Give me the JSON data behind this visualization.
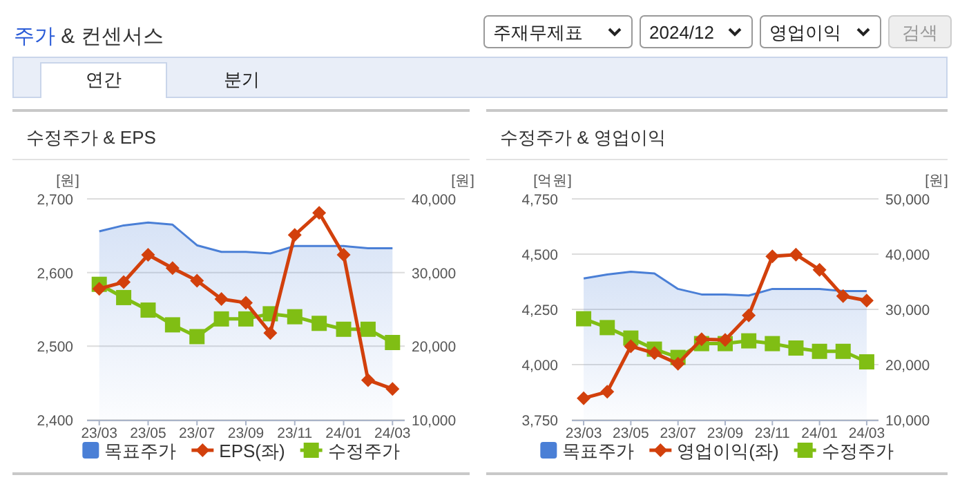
{
  "chart_data": [
    {
      "type": "other",
      "title": "주가 & 컨센서스",
      "annotations": [
        "주재무제표",
        "2024/12",
        "영업이익",
        "검색",
        "연간",
        "분기"
      ]
    },
    {
      "type": "line",
      "title": "수정주가 & EPS",
      "ylabel": "[원]",
      "y2label": "[원]",
      "categories": [
        "23/03",
        null,
        "23/05",
        null,
        "23/07",
        null,
        "23/09",
        null,
        "23/11",
        null,
        "24/01",
        null,
        "24/03"
      ],
      "ylim": [
        2400,
        2700
      ],
      "yticks": [
        {
          "value": 2400,
          "label": "2,400"
        },
        {
          "value": 2500,
          "label": "2,500"
        },
        {
          "value": 2600,
          "label": "2,600"
        },
        {
          "value": 2700,
          "label": "2,700"
        }
      ],
      "y2lim": [
        10000,
        40000
      ],
      "y2ticks": [
        {
          "value": 10000,
          "label": "10,000"
        },
        {
          "value": 20000,
          "label": "20,000"
        },
        {
          "value": 30000,
          "label": "30,000"
        },
        {
          "value": 40000,
          "label": "40,000"
        }
      ],
      "grid": "y",
      "legend": "bottom",
      "series": [
        {
          "name": "목표주가",
          "type": "area",
          "axis": "y2",
          "color": "#4a7fd6",
          "values": [
            35600,
            36400,
            36800,
            36500,
            33700,
            32800,
            32800,
            32600,
            33600,
            33600,
            33600,
            33300,
            33300
          ]
        },
        {
          "name": "EPS(좌)",
          "type": "line",
          "axis": "y",
          "color": "#d2400c",
          "marker": "diamond",
          "values": [
            2578,
            2587,
            2624,
            2606,
            2589,
            2564,
            2559,
            2518,
            2651,
            2681,
            2624,
            2454,
            2442
          ]
        },
        {
          "name": "수정주가",
          "type": "line",
          "axis": "y2",
          "color": "#80be14",
          "marker": "square",
          "values": [
            28400,
            26600,
            24900,
            22900,
            21300,
            23700,
            23700,
            24400,
            24000,
            23100,
            22300,
            22300,
            20500
          ]
        }
      ]
    },
    {
      "type": "line",
      "title": "수정주가 & 영업이익",
      "ylabel": "[억원]",
      "y2label": "[원]",
      "categories": [
        "23/03",
        null,
        "23/05",
        null,
        "23/07",
        null,
        "23/09",
        null,
        "23/11",
        null,
        "24/01",
        null,
        "24/03"
      ],
      "ylim": [
        3750,
        4750
      ],
      "yticks": [
        {
          "value": 3750,
          "label": "3,750"
        },
        {
          "value": 4000,
          "label": "4,000"
        },
        {
          "value": 4250,
          "label": "4,250"
        },
        {
          "value": 4500,
          "label": "4,500"
        },
        {
          "value": 4750,
          "label": "4,750"
        }
      ],
      "y2lim": [
        10000,
        50000
      ],
      "y2ticks": [
        {
          "value": 10000,
          "label": "10,000"
        },
        {
          "value": 20000,
          "label": "20,000"
        },
        {
          "value": 30000,
          "label": "30,000"
        },
        {
          "value": 40000,
          "label": "40,000"
        },
        {
          "value": 50000,
          "label": "50,000"
        }
      ],
      "grid": "y",
      "legend": "bottom",
      "series": [
        {
          "name": "목표주가",
          "type": "area",
          "axis": "y2",
          "color": "#4a7fd6",
          "values": [
            35600,
            36300,
            36800,
            36500,
            33700,
            32700,
            32700,
            32500,
            33700,
            33700,
            33700,
            33300,
            33300
          ]
        },
        {
          "name": "영업이익(좌)",
          "type": "line",
          "axis": "y",
          "color": "#d2400c",
          "marker": "diamond",
          "values": [
            3848,
            3877,
            4083,
            4052,
            4004,
            4115,
            4112,
            4223,
            4490,
            4498,
            4429,
            4310,
            4290
          ]
        },
        {
          "name": "수정주가",
          "type": "line",
          "axis": "y2",
          "color": "#80be14",
          "marker": "square",
          "values": [
            28300,
            26700,
            24800,
            22800,
            21300,
            23800,
            23800,
            24300,
            23800,
            23000,
            22400,
            22400,
            20500
          ]
        }
      ]
    }
  ]
}
